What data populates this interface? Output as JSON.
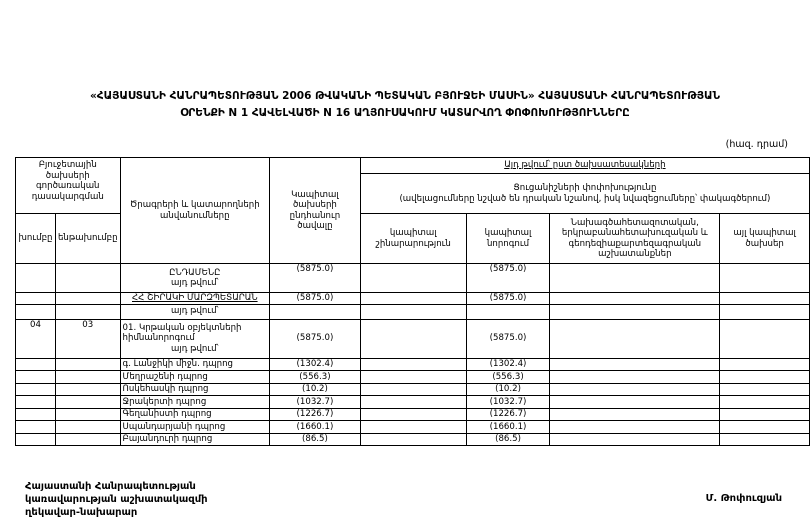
{
  "title": {
    "line1": "«ՀԱՅԱՍՏԱՆԻ ՀԱՆՐԱՊԵՏՈՒԹՅԱՆ 2006 ԹՎԱԿԱՆԻ ՊԵՏԱԿԱՆ ԲՅՈՒՋԵԻ ՄԱՍԻՆ» ՀԱՅԱՍՏԱՆԻ ՀԱՆՐԱՊԵՏՈՒԹՅԱՆ",
    "line2": "ՕՐԵՆՔԻ N 1 ՀԱՎԵԼՎԱԾԻ N 16 ԱՂՅՈՒՍԱԿՈՒՄ ԿԱՏԱՐՎՈՂ ՓՈՓՈԽՈՒԹՅՈՒՆՆԵՐԸ"
  },
  "unit": "(հազ. դրամ)",
  "headers": {
    "classification": "Բյուջետային ծախսերի գործառական դասակարգման",
    "group": "խումբը",
    "subgroup": "ենթախումբը",
    "names": "Ծրագրերի և կատարողների անվանումները",
    "total": "Կապիտալ ծախսերի ընդհանուր ծավալը",
    "by_type": "Այդ թվում՝ ըստ ծախսատեսակների",
    "changes": "Ցուցանիշների փոփոխությունը",
    "changes_note": "(ավելացումները նշված են դրական նշանով, իսկ նվազեցումները՝ փակագծերում)",
    "construction": "կապիտալ շինարարություն",
    "repair": "կապիտալ նորոգում",
    "research": "Նախագծահետազոտական, երկրաբանահետախուզական և գեոդեզիաքարտեզագրական աշխատանքներ",
    "other": "այլ կապիտալ ծախսեր"
  },
  "rows": {
    "grand_total": {
      "name": "ԸՆԴԱՄԵՆԸ",
      "sub": "այդ թվում՝",
      "total": "(5875.0)",
      "repair": "(5875.0)"
    },
    "region": {
      "name": "ՀՀ ՇԻՐԱԿԻ ՄԱՐԶՊԵՏԱՐԱՆ",
      "total": "(5875.0)",
      "repair": "(5875.0)"
    },
    "region_sub": {
      "name": "այդ թվում՝"
    },
    "program": {
      "group": "04",
      "subgroup": "03",
      "name": "01. Կրթական օբյեկտների հիմնանորոգում",
      "sub": "այդ թվում՝",
      "total": "(5875.0)",
      "repair": "(5875.0)"
    },
    "schools": [
      {
        "name": "գ. Լանջիկի միջն. դպրոց",
        "total": "(1302.4)",
        "repair": "(1302.4)"
      },
      {
        "name": "Մեղրաշենի դպրոց",
        "total": "(556.3)",
        "repair": "(556.3)"
      },
      {
        "name": "Ոսկեհասկի դպրոց",
        "total": "(10.2)",
        "repair": "(10.2)"
      },
      {
        "name": "Ջրակերտի դպրոց",
        "total": "(1032.7)",
        "repair": "(1032.7)"
      },
      {
        "name": "Գեղանիստի դպրոց",
        "total": "(1226.7)",
        "repair": "(1226.7)"
      },
      {
        "name": "Սպանդարյանի դպրոց",
        "total": "(1660.1)",
        "repair": "(1660.1)"
      },
      {
        "name": "Բայանդուրի դպրոց",
        "total": "(86.5)",
        "repair": "(86.5)"
      }
    ]
  },
  "footer": {
    "line1": "Հայաստանի Հանրապետության",
    "line2": "կառավարության աշխատակազմի",
    "line3": "ղեկավար-նախարար",
    "signature": "Մ. Թոփուզյան"
  }
}
